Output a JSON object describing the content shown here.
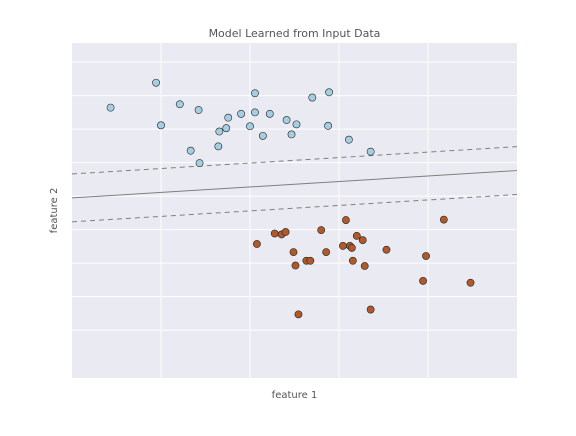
{
  "chart_data": {
    "type": "scatter",
    "title": "Model Learned from Input Data",
    "xlabel": "feature 1",
    "ylabel": "feature 2",
    "xlim": [
      -1.0,
      3.5
    ],
    "ylim": [
      -1.0,
      6.0
    ],
    "grid": true,
    "x_grid": [
      -0.1,
      0.8,
      1.7,
      2.6
    ],
    "y_grid": [
      0.0,
      0.7,
      1.4,
      2.1,
      2.8,
      3.5,
      4.2,
      4.9,
      5.6
    ],
    "colors": {
      "background": "#eaeaf2",
      "grid": "#ffffff",
      "class_0_fill": "#a6cee3",
      "class_1_fill": "#b15928",
      "point_edge": "#222222",
      "decision_line": "#7f7f7f",
      "text": "#555555"
    },
    "decision_boundary": {
      "slope": 0.127,
      "intercept": 2.89
    },
    "margins": [
      {
        "slope": 0.127,
        "intercept": 3.39
      },
      {
        "slope": 0.127,
        "intercept": 2.39
      }
    ],
    "series": [
      {
        "class": 0,
        "color": "#a6cee3",
        "points": [
          [
            -0.61,
            4.65
          ],
          [
            -0.15,
            5.17
          ],
          [
            -0.1,
            4.28
          ],
          [
            0.09,
            4.72
          ],
          [
            0.2,
            3.75
          ],
          [
            0.28,
            4.6
          ],
          [
            0.29,
            3.49
          ],
          [
            0.49,
            4.15
          ],
          [
            0.48,
            3.84
          ],
          [
            0.56,
            4.22
          ],
          [
            0.58,
            4.44
          ],
          [
            0.71,
            4.52
          ],
          [
            0.8,
            4.26
          ],
          [
            0.85,
            4.95
          ],
          [
            0.85,
            4.55
          ],
          [
            0.93,
            4.06
          ],
          [
            1.0,
            4.52
          ],
          [
            1.17,
            4.39
          ],
          [
            1.22,
            4.09
          ],
          [
            1.27,
            4.3
          ],
          [
            1.43,
            4.86
          ],
          [
            1.6,
            4.97
          ],
          [
            1.59,
            4.27
          ],
          [
            1.8,
            3.98
          ],
          [
            2.02,
            3.73
          ]
        ]
      },
      {
        "class": 1,
        "color": "#b15928",
        "points": [
          [
            0.87,
            1.8
          ],
          [
            1.05,
            2.02
          ],
          [
            1.12,
            2.0
          ],
          [
            1.16,
            2.05
          ],
          [
            1.24,
            1.63
          ],
          [
            1.26,
            1.35
          ],
          [
            1.29,
            0.33
          ],
          [
            1.37,
            1.45
          ],
          [
            1.41,
            1.45
          ],
          [
            1.52,
            2.09
          ],
          [
            1.57,
            1.63
          ],
          [
            1.74,
            1.76
          ],
          [
            1.77,
            2.3
          ],
          [
            1.81,
            1.76
          ],
          [
            1.83,
            1.72
          ],
          [
            1.84,
            1.45
          ],
          [
            1.88,
            1.97
          ],
          [
            1.94,
            1.88
          ],
          [
            1.96,
            1.34
          ],
          [
            2.02,
            0.43
          ],
          [
            2.18,
            1.68
          ],
          [
            2.55,
            1.03
          ],
          [
            2.58,
            1.55
          ],
          [
            2.76,
            2.31
          ],
          [
            3.03,
            0.99
          ]
        ]
      }
    ]
  }
}
